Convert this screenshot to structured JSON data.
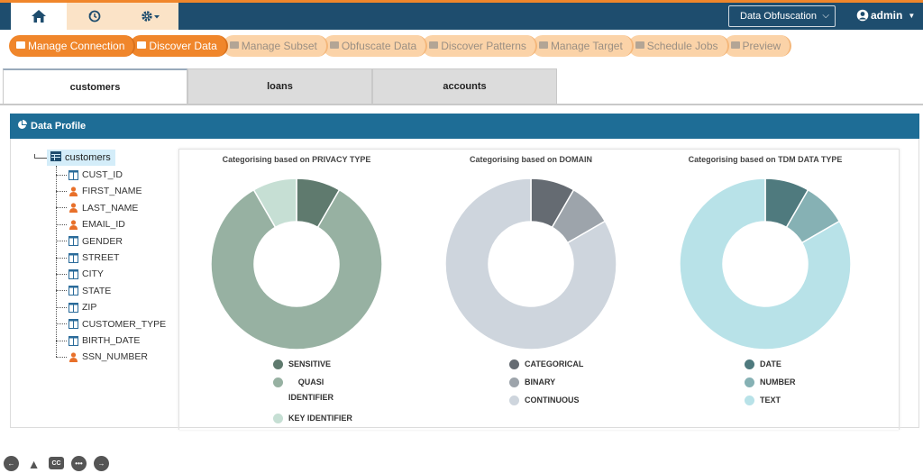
{
  "topnav": {
    "items": [
      {
        "name": "home-icon",
        "active": true
      },
      {
        "name": "history-icon",
        "active": false
      },
      {
        "name": "settings-dropdown-icon",
        "active": false
      }
    ],
    "mode_select": "Data Obfuscation",
    "user": "admin"
  },
  "wizard": {
    "steps": [
      {
        "label": "Manage Connection",
        "icon": "folder-icon",
        "done": true
      },
      {
        "label": "Discover Data",
        "icon": "area-chart-icon",
        "done": true
      },
      {
        "label": "Manage Subset",
        "icon": "copy-icon",
        "done": false
      },
      {
        "label": "Obfuscate Data",
        "icon": "shield-icon",
        "done": false
      },
      {
        "label": "Discover Patterns",
        "icon": "gear-icon",
        "done": false
      },
      {
        "label": "Manage Target",
        "icon": "briefcase-icon",
        "done": false
      },
      {
        "label": "Schedule Jobs",
        "icon": "calendar-icon",
        "done": false
      },
      {
        "label": "Preview",
        "icon": "file-icon",
        "done": false
      }
    ]
  },
  "tabs": [
    {
      "label": "customers",
      "active": true
    },
    {
      "label": "loans",
      "active": false
    },
    {
      "label": "accounts",
      "active": false
    }
  ],
  "panel": {
    "title": "Data Profile"
  },
  "tree": {
    "root": "customers",
    "fields": [
      {
        "label": "CUST_ID",
        "icon": "column-icon"
      },
      {
        "label": "FIRST_NAME",
        "icon": "person-icon"
      },
      {
        "label": "LAST_NAME",
        "icon": "person-icon"
      },
      {
        "label": "EMAIL_ID",
        "icon": "person-icon"
      },
      {
        "label": "GENDER",
        "icon": "column-icon"
      },
      {
        "label": "STREET",
        "icon": "column-icon"
      },
      {
        "label": "CITY",
        "icon": "column-icon"
      },
      {
        "label": "STATE",
        "icon": "column-icon"
      },
      {
        "label": "ZIP",
        "icon": "column-icon"
      },
      {
        "label": "CUSTOMER_TYPE",
        "icon": "column-icon"
      },
      {
        "label": "BIRTH_DATE",
        "icon": "column-icon"
      },
      {
        "label": "SSN_NUMBER",
        "icon": "person-icon"
      }
    ]
  },
  "chart_data": [
    {
      "type": "pie",
      "title": "Categorising based on PRIVACY TYPE",
      "slices": [
        {
          "name": "SENSITIVE",
          "value": 1,
          "color": "#5f7a6e"
        },
        {
          "name": "QUASI IDENTIFIER",
          "value": 10,
          "color": "#97b1a2"
        },
        {
          "name": "KEY IDENTIFIER",
          "value": 1,
          "color": "#c6dfd4"
        }
      ],
      "legend_position": "bottom"
    },
    {
      "type": "pie",
      "title": "Categorising based on DOMAIN",
      "slices": [
        {
          "name": "CATEGORICAL",
          "value": 1,
          "color": "#656b72"
        },
        {
          "name": "BINARY",
          "value": 1,
          "color": "#9da4ab"
        },
        {
          "name": "CONTINUOUS",
          "value": 10,
          "color": "#ced5dd"
        }
      ],
      "legend_position": "bottom"
    },
    {
      "type": "pie",
      "title": "Categorising based on TDM DATA TYPE",
      "slices": [
        {
          "name": "DATE",
          "value": 1,
          "color": "#4f7a7e"
        },
        {
          "name": "NUMBER",
          "value": 1,
          "color": "#86b1b4"
        },
        {
          "name": "TEXT",
          "value": 10,
          "color": "#b8e2e8"
        }
      ],
      "legend_position": "bottom"
    }
  ],
  "footer": [
    {
      "name": "back-icon"
    },
    {
      "name": "cone-icon"
    },
    {
      "name": "cc-icon",
      "label": "CC"
    },
    {
      "name": "more-icon"
    },
    {
      "name": "forward-icon"
    }
  ]
}
